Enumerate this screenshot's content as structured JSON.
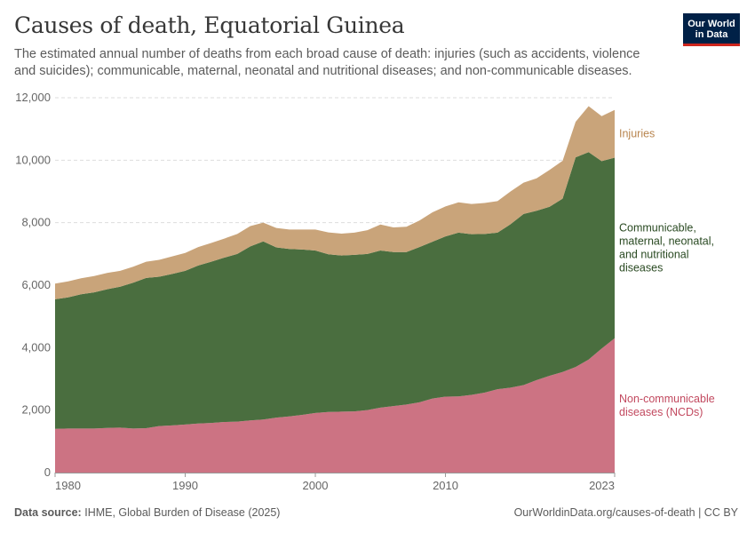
{
  "header": {
    "title": "Causes of death, Equatorial Guinea",
    "subtitle": "The estimated annual number of deaths from each broad cause of death: injuries (such as accidents, violence and suicides); communicable, maternal, neonatal and nutritional diseases; and non-communicable diseases."
  },
  "logo": {
    "line1": "Our World",
    "line2": "in Data"
  },
  "footer": {
    "source_label": "Data source:",
    "source_text": "IHME, Global Burden of Disease (2025)",
    "url": "OurWorldinData.org/causes-of-death | CC BY"
  },
  "colors": {
    "ncd": "#cc7383",
    "communicable": "#4a6e3f",
    "injuries": "#c9a47a",
    "ncd_label": "#c2495f",
    "communicable_label": "#2a4a22",
    "injuries_label": "#b8854f"
  },
  "chart_data": {
    "type": "area",
    "stacked": true,
    "x": [
      1980,
      1981,
      1982,
      1983,
      1984,
      1985,
      1986,
      1987,
      1988,
      1989,
      1990,
      1991,
      1992,
      1993,
      1994,
      1995,
      1996,
      1997,
      1998,
      1999,
      2000,
      2001,
      2002,
      2003,
      2004,
      2005,
      2006,
      2007,
      2008,
      2009,
      2010,
      2011,
      2012,
      2013,
      2014,
      2015,
      2016,
      2017,
      2018,
      2019,
      2020,
      2021,
      2022,
      2023
    ],
    "series": [
      {
        "name": "Non-communicable diseases (NCDs)",
        "label_lines": [
          "Non-communicable",
          "diseases (NCDs)"
        ],
        "color_key": "ncd",
        "values": [
          1400,
          1410,
          1410,
          1410,
          1430,
          1440,
          1410,
          1420,
          1490,
          1510,
          1540,
          1570,
          1590,
          1620,
          1630,
          1670,
          1700,
          1760,
          1800,
          1850,
          1910,
          1940,
          1950,
          1960,
          2000,
          2080,
          2130,
          2180,
          2250,
          2370,
          2430,
          2440,
          2490,
          2560,
          2670,
          2720,
          2800,
          2960,
          3100,
          3220,
          3380,
          3620,
          3970,
          4300
        ]
      },
      {
        "name": "Communicable, maternal, neonatal, and nutritional diseases",
        "label_lines": [
          "Communicable,",
          "maternal, neonatal,",
          "and nutritional",
          "diseases"
        ],
        "color_key": "communicable",
        "values": [
          4150,
          4200,
          4300,
          4360,
          4440,
          4510,
          4670,
          4810,
          4780,
          4850,
          4920,
          5060,
          5160,
          5260,
          5370,
          5570,
          5700,
          5450,
          5360,
          5290,
          5200,
          5050,
          5000,
          5010,
          5000,
          5030,
          4930,
          4880,
          4970,
          5020,
          5130,
          5240,
          5140,
          5080,
          5010,
          5230,
          5480,
          5420,
          5410,
          5550,
          6710,
          6640,
          6000,
          5780
        ]
      },
      {
        "name": "Injuries",
        "label_lines": [
          "Injuries"
        ],
        "color_key": "injuries",
        "values": [
          500,
          510,
          510,
          520,
          520,
          510,
          510,
          520,
          540,
          560,
          570,
          590,
          600,
          610,
          640,
          650,
          600,
          620,
          620,
          640,
          670,
          700,
          700,
          710,
          760,
          830,
          790,
          810,
          850,
          940,
          960,
          970,
          970,
          990,
          1010,
          1050,
          1000,
          1040,
          1180,
          1210,
          1140,
          1470,
          1440,
          1530
        ]
      }
    ],
    "yaxis": {
      "ticks": [
        0,
        2000,
        4000,
        6000,
        8000,
        10000,
        12000
      ],
      "tick_labels": [
        "0",
        "2,000",
        "4,000",
        "6,000",
        "8,000",
        "10,000",
        "12,000"
      ],
      "ylim": [
        0,
        12000
      ]
    },
    "xaxis": {
      "ticks": [
        1980,
        1990,
        2000,
        2010,
        2023
      ],
      "tick_labels": [
        "1980",
        "1990",
        "2000",
        "2010",
        "2023"
      ],
      "xlim": [
        1980,
        2023
      ]
    },
    "grid": "horizontal dashed",
    "legend": "inline-right"
  }
}
